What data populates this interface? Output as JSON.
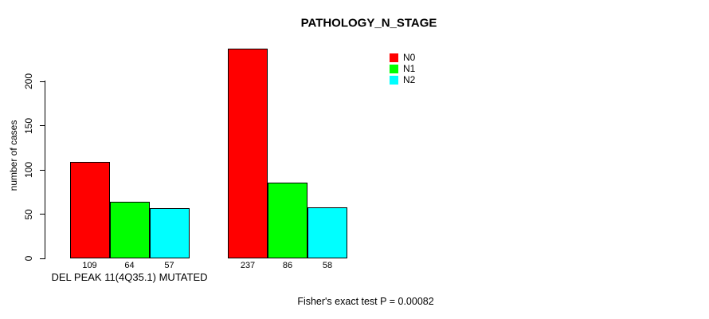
{
  "chart_data": {
    "type": "bar",
    "title": "PATHOLOGY_N_STAGE",
    "xlabel": "",
    "ylabel": "number of cases",
    "categories": [
      "DEL PEAK 11(4Q35.1) MUTATED",
      ""
    ],
    "series": [
      {
        "name": "N0",
        "color": "#FF0000",
        "values": [
          109,
          237
        ]
      },
      {
        "name": "N1",
        "color": "#00FF00",
        "values": [
          64,
          86
        ]
      },
      {
        "name": "N2",
        "color": "#00FFFF",
        "values": [
          57,
          58
        ]
      }
    ],
    "yticks": [
      0,
      50,
      100,
      150,
      200
    ],
    "ylim": [
      0,
      240
    ],
    "grid": false,
    "legend_position": "top-right",
    "bar_value_labels": [
      [
        109,
        64,
        57
      ],
      [
        237,
        86,
        58
      ]
    ],
    "footer": "Fisher's exact test P = 0.00082",
    "axis_color": "#000000",
    "background_color": "#FFFFFF"
  }
}
